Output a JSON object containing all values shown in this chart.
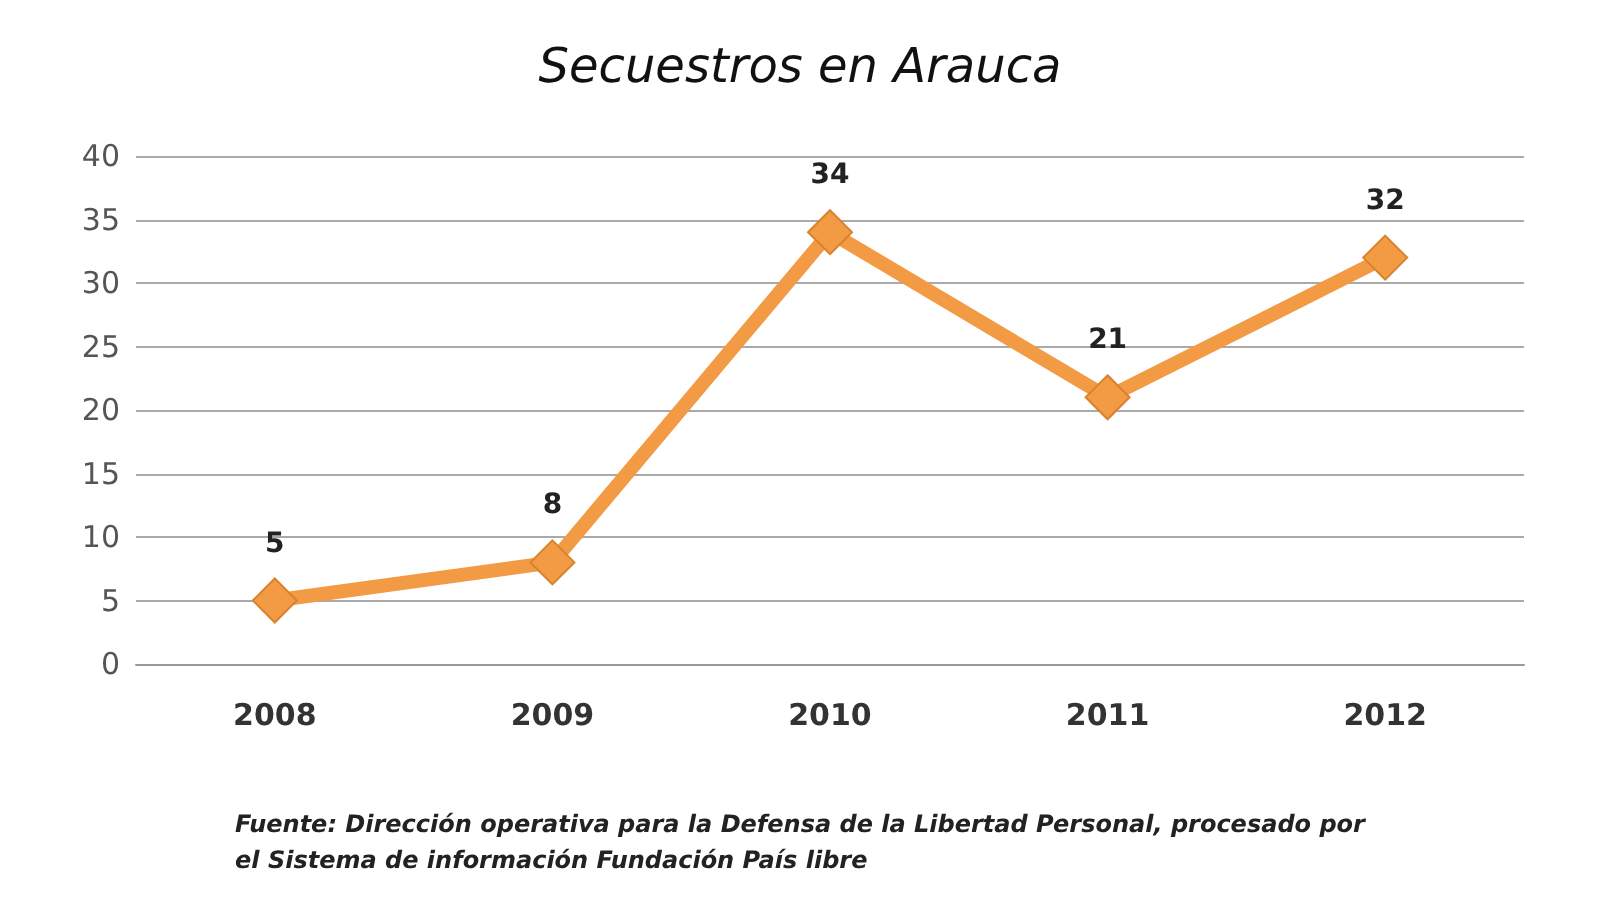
{
  "chart_data": {
    "type": "line",
    "title": "Secuestros en Arauca",
    "categories": [
      "2008",
      "2009",
      "2010",
      "2011",
      "2012"
    ],
    "values": [
      5,
      8,
      34,
      21,
      32
    ],
    "color": "#f39a45",
    "ylim": [
      0,
      40
    ],
    "yticks": [
      0,
      5,
      10,
      15,
      20,
      25,
      30,
      35,
      40
    ],
    "grid": "y",
    "marker": "diamond",
    "line_style": "solid",
    "data_labels": true,
    "annotations": [
      "Fuente: Dirección operativa para la Defensa de la Libertad Personal, procesado por\nel Sistema de información Fundación País libre"
    ]
  }
}
